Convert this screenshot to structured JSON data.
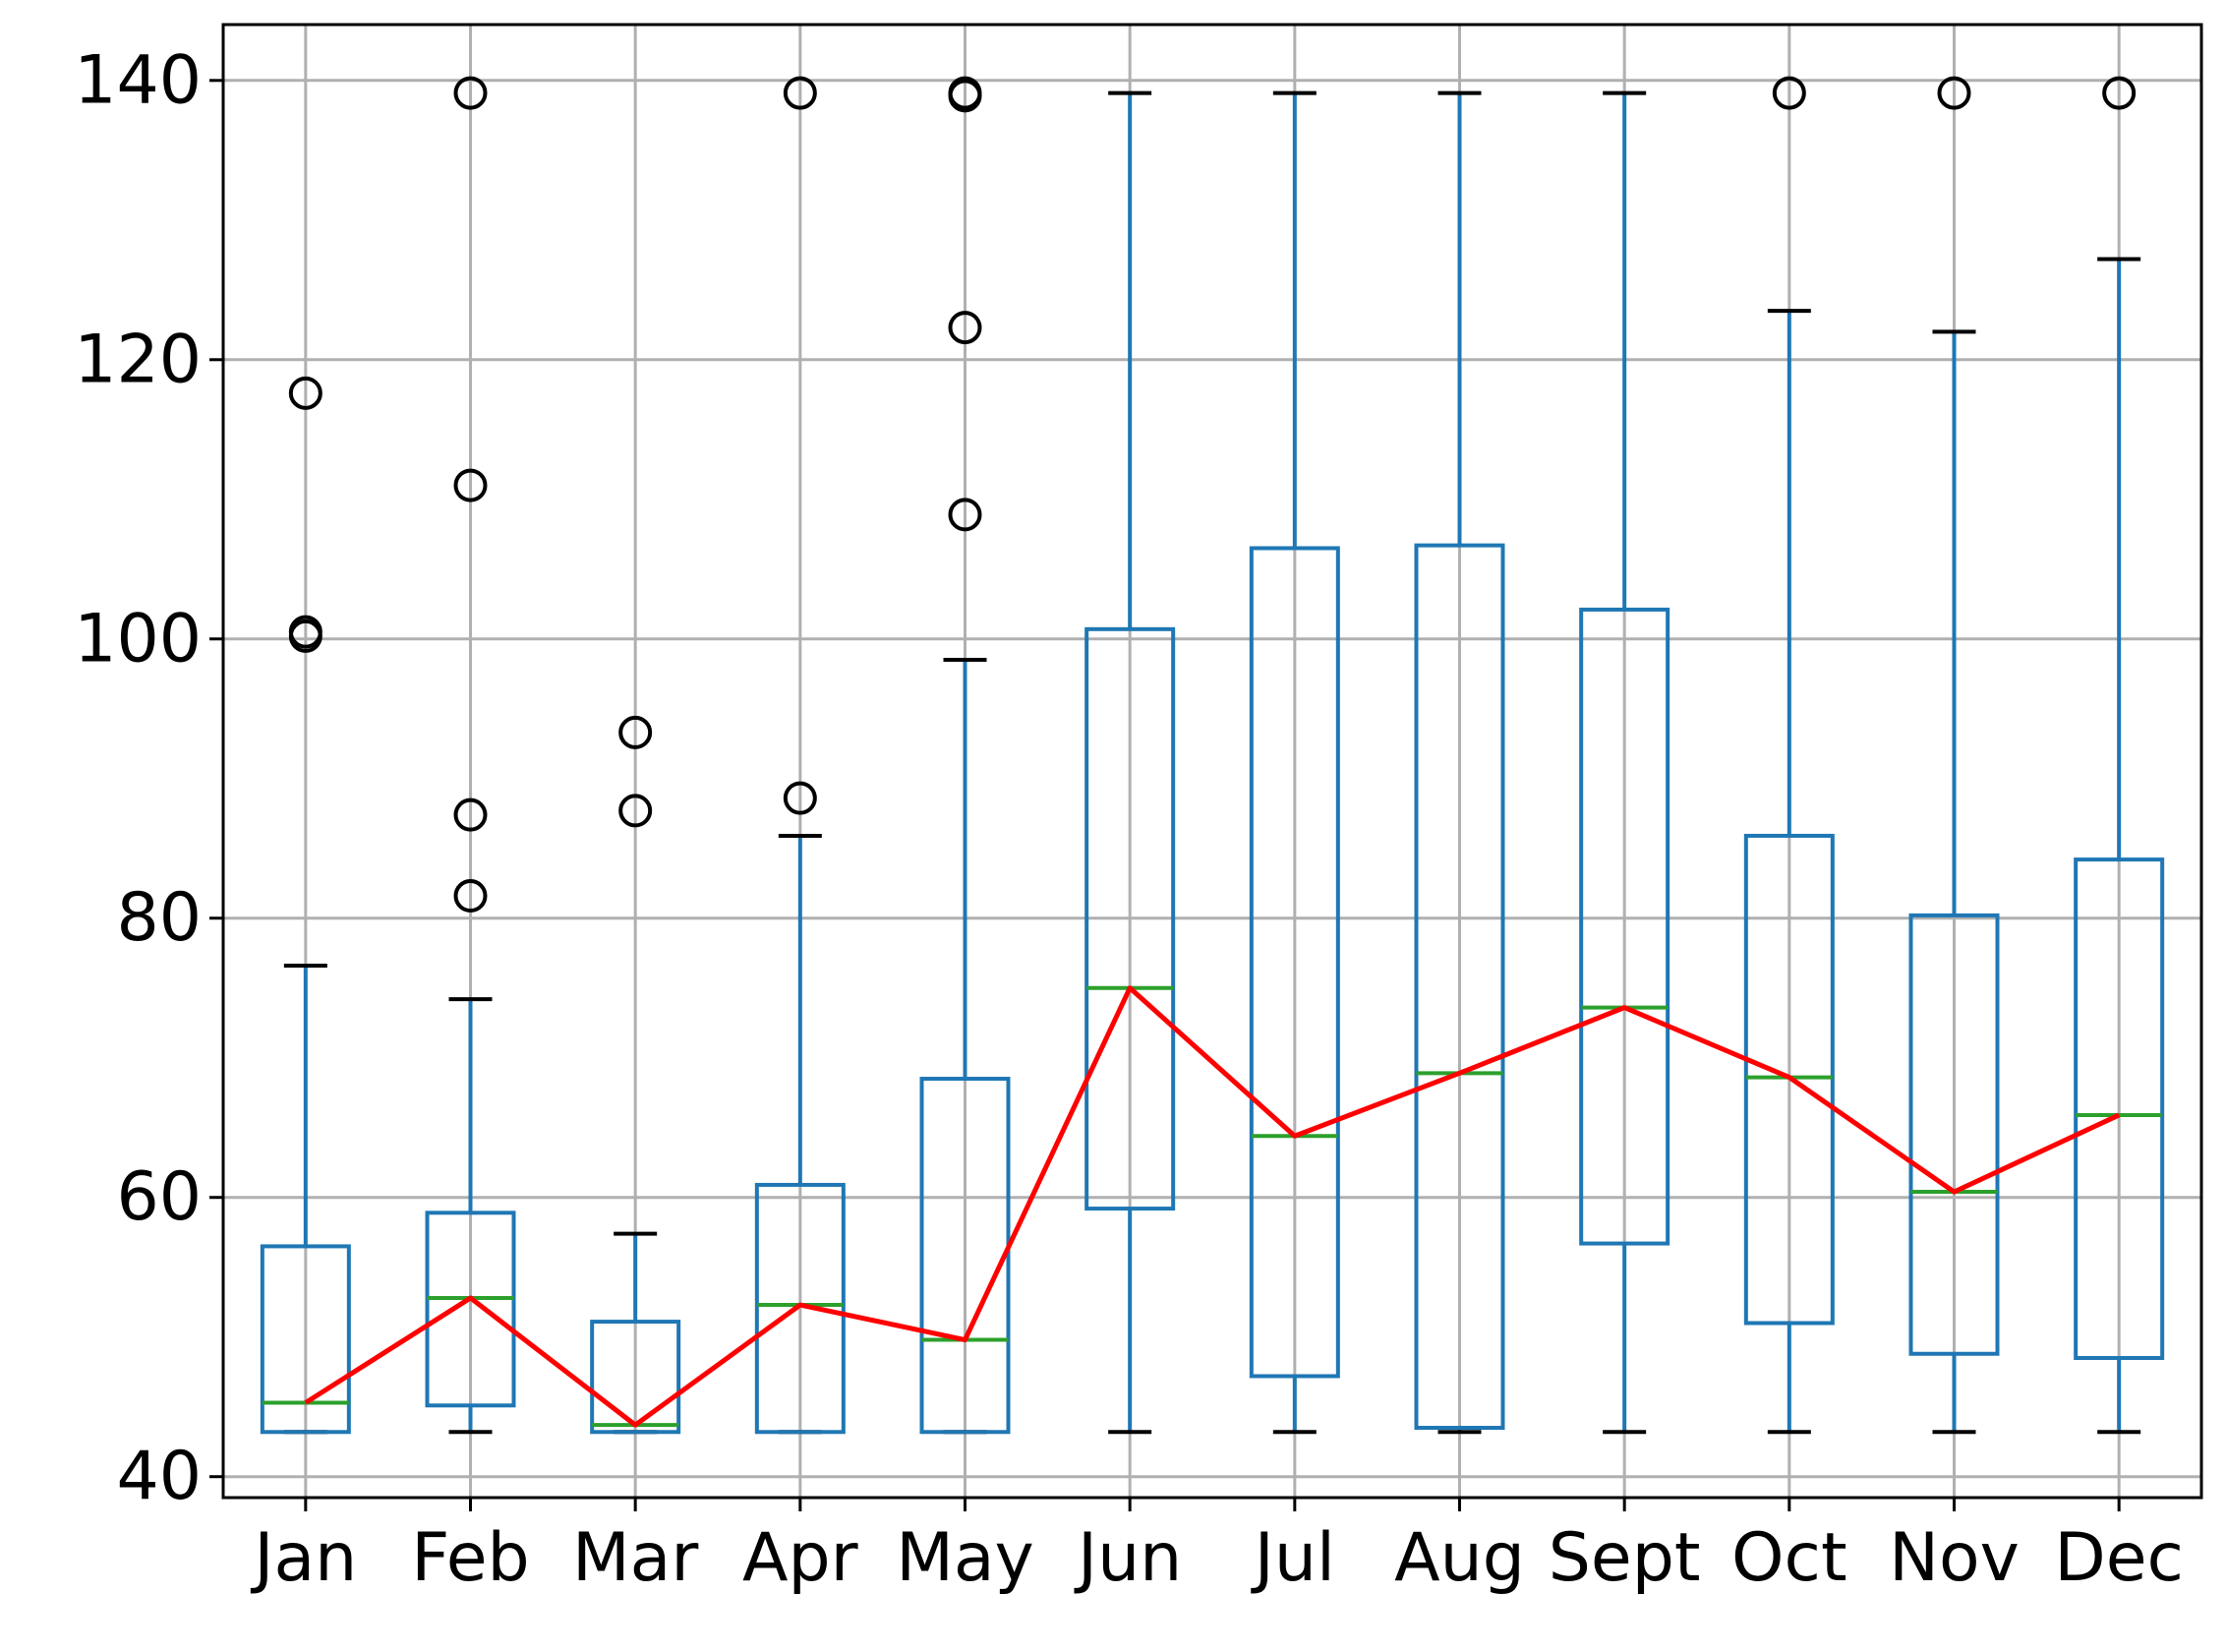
{
  "colors": {
    "box": "#1f77b4",
    "median": "#2ca02c",
    "mean_line": "#ff0000",
    "flier": "#000000",
    "grid": "#b0b0b0",
    "axes": "#000000"
  },
  "chart_data": {
    "type": "box",
    "title": "",
    "xlabel": "",
    "ylabel": "",
    "grid": true,
    "ylim": [
      38.5,
      144
    ],
    "yticks": [
      40,
      60,
      80,
      100,
      120,
      140
    ],
    "ytick_labels": [
      "40",
      "60",
      "80",
      "100",
      "120",
      "140"
    ],
    "categories": [
      "Jan",
      "Feb",
      "Mar",
      "Apr",
      "May",
      "Jun",
      "Jul",
      "Aug",
      "Sept",
      "Oct",
      "Nov",
      "Dec"
    ],
    "boxes": [
      {
        "whislo": 43.2,
        "q1": 43.2,
        "med": 45.3,
        "q3": 56.5,
        "whishi": 76.6,
        "fliers": [
          100.2,
          100.5,
          117.6
        ]
      },
      {
        "whislo": 43.2,
        "q1": 45.1,
        "med": 52.8,
        "q3": 58.9,
        "whishi": 74.2,
        "fliers": [
          81.6,
          87.4,
          111.0,
          139.1
        ]
      },
      {
        "whislo": 43.2,
        "q1": 43.2,
        "med": 43.7,
        "q3": 51.1,
        "whishi": 57.4,
        "fliers": [
          87.7,
          93.3
        ]
      },
      {
        "whislo": 43.2,
        "q1": 43.2,
        "med": 52.3,
        "q3": 60.9,
        "whishi": 85.9,
        "fliers": [
          88.6,
          139.1
        ]
      },
      {
        "whislo": 43.2,
        "q1": 43.2,
        "med": 49.8,
        "q3": 68.5,
        "whishi": 98.5,
        "fliers": [
          108.9,
          122.3,
          138.9,
          139.1
        ]
      },
      {
        "whislo": 43.2,
        "q1": 59.2,
        "med": 75.0,
        "q3": 100.7,
        "whishi": 139.1,
        "fliers": []
      },
      {
        "whislo": 43.2,
        "q1": 47.2,
        "med": 64.4,
        "q3": 106.5,
        "whishi": 139.1,
        "fliers": []
      },
      {
        "whislo": 43.2,
        "q1": 43.5,
        "med": 68.9,
        "q3": 106.7,
        "whishi": 139.1,
        "fliers": []
      },
      {
        "whislo": 43.2,
        "q1": 56.7,
        "med": 73.6,
        "q3": 102.1,
        "whishi": 139.1,
        "fliers": []
      },
      {
        "whislo": 43.2,
        "q1": 51.0,
        "med": 68.6,
        "q3": 85.9,
        "whishi": 123.5,
        "fliers": [
          139.1
        ]
      },
      {
        "whislo": 43.2,
        "q1": 48.8,
        "med": 60.4,
        "q3": 80.2,
        "whishi": 122.0,
        "fliers": [
          139.1
        ]
      },
      {
        "whislo": 43.2,
        "q1": 48.5,
        "med": 65.9,
        "q3": 84.2,
        "whishi": 127.2,
        "fliers": [
          139.1
        ]
      }
    ],
    "line_series": {
      "values": [
        45.3,
        52.8,
        43.7,
        52.3,
        49.8,
        75.0,
        64.4,
        68.9,
        73.6,
        68.6,
        60.4,
        65.9
      ]
    }
  }
}
